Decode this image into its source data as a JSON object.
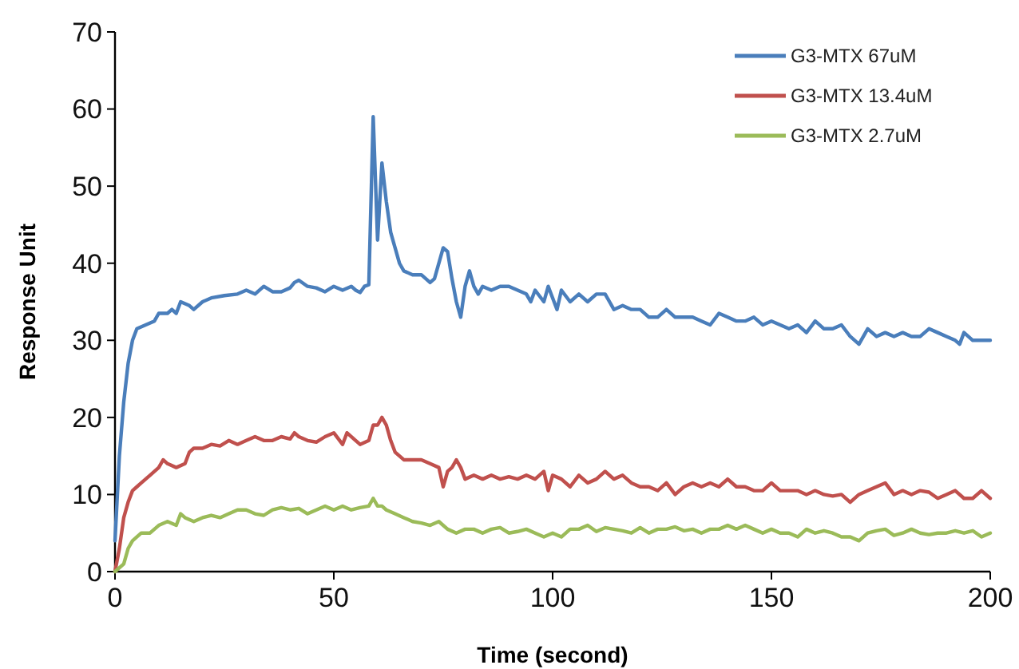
{
  "chart_data": {
    "type": "line",
    "xlabel": "Time (second)",
    "ylabel": "Response Unit",
    "xlim": [
      0,
      200
    ],
    "xticks": [
      0,
      50,
      100,
      150,
      200
    ],
    "ylim": [
      0,
      70
    ],
    "yticks": [
      0,
      10,
      20,
      30,
      40,
      50,
      60,
      70
    ],
    "grid": false,
    "legend": "top right",
    "marker": "none",
    "line_style": "solid",
    "series": [
      {
        "name": "G3-MTX 67uM",
        "color": "#4a7ebb",
        "x": [
          0,
          1,
          2,
          3,
          4,
          5,
          7,
          9,
          10,
          12,
          13,
          14,
          15,
          17,
          18,
          20,
          22,
          25,
          28,
          30,
          32,
          34,
          36,
          38,
          40,
          41,
          42,
          44,
          46,
          48,
          50,
          52,
          54,
          55,
          56,
          57,
          58,
          59,
          60,
          61,
          62,
          63,
          64,
          65,
          66,
          68,
          70,
          72,
          73,
          75,
          76,
          77,
          78,
          79,
          80,
          81,
          82,
          83,
          84,
          86,
          88,
          90,
          92,
          94,
          95,
          96,
          98,
          99,
          100,
          101,
          102,
          104,
          106,
          108,
          110,
          112,
          113,
          114,
          116,
          118,
          120,
          122,
          124,
          126,
          128,
          130,
          132,
          134,
          136,
          138,
          140,
          142,
          144,
          146,
          148,
          150,
          152,
          154,
          156,
          158,
          160,
          162,
          164,
          166,
          168,
          170,
          172,
          174,
          176,
          178,
          180,
          182,
          184,
          186,
          188,
          190,
          192,
          193,
          194,
          196,
          198,
          200
        ],
        "values": [
          4,
          15,
          22,
          27,
          30,
          31.5,
          32,
          32.5,
          33.5,
          33.5,
          34,
          33.5,
          35,
          34.5,
          34,
          35,
          35.5,
          35.8,
          36,
          36.5,
          36,
          37,
          36.3,
          36.3,
          36.8,
          37.5,
          37.8,
          37,
          36.8,
          36.3,
          37,
          36.5,
          37,
          36.5,
          36.2,
          37,
          37.2,
          59,
          43,
          53,
          48,
          44,
          42,
          40,
          39,
          38.5,
          38.5,
          37.5,
          38,
          42,
          41.5,
          38,
          35,
          33,
          37,
          39,
          37,
          36,
          37,
          36.5,
          37,
          37,
          36.5,
          36,
          35,
          36.5,
          35,
          37,
          35.5,
          34,
          36.5,
          35,
          36,
          35,
          36,
          36,
          35,
          34,
          34.5,
          34,
          34,
          33,
          33,
          34,
          33,
          33,
          33,
          32.5,
          32,
          33.5,
          33,
          32.5,
          32.5,
          33,
          32,
          32.5,
          32,
          31.5,
          32,
          31,
          32.5,
          31.5,
          31.5,
          32,
          30.5,
          29.5,
          31.5,
          30.5,
          31,
          30.5,
          31,
          30.5,
          30.5,
          31.5,
          31,
          30.5,
          30,
          29.5,
          31,
          30,
          30,
          30
        ]
      },
      {
        "name": "G3-MTX 13.4uM",
        "color": "#c0504d",
        "x": [
          0,
          1,
          2,
          3,
          4,
          5,
          6,
          8,
          10,
          11,
          12,
          14,
          16,
          17,
          18,
          20,
          22,
          24,
          26,
          28,
          30,
          32,
          34,
          36,
          38,
          40,
          41,
          42,
          44,
          46,
          48,
          50,
          52,
          53,
          55,
          56,
          58,
          59,
          60,
          61,
          62,
          63,
          64,
          65,
          66,
          68,
          70,
          72,
          74,
          75,
          76,
          77,
          78,
          79,
          80,
          82,
          84,
          86,
          88,
          90,
          92,
          94,
          96,
          98,
          99,
          100,
          102,
          104,
          106,
          108,
          110,
          112,
          114,
          116,
          118,
          120,
          122,
          124,
          126,
          128,
          130,
          132,
          134,
          136,
          138,
          140,
          142,
          144,
          146,
          148,
          150,
          152,
          154,
          156,
          158,
          160,
          162,
          164,
          166,
          168,
          170,
          172,
          174,
          176,
          178,
          180,
          182,
          184,
          186,
          188,
          190,
          192,
          194,
          196,
          198,
          200
        ],
        "values": [
          0,
          3,
          7,
          9,
          10.5,
          11,
          11.5,
          12.5,
          13.5,
          14.5,
          14,
          13.5,
          14,
          15.5,
          16,
          16,
          16.5,
          16.3,
          17,
          16.5,
          17,
          17.5,
          17,
          17,
          17.5,
          17.2,
          18,
          17.5,
          17,
          16.8,
          17.5,
          18,
          16.5,
          18,
          17,
          16.5,
          17,
          19,
          19,
          20,
          19,
          17,
          15.5,
          15,
          14.5,
          14.5,
          14.5,
          14,
          13.5,
          11,
          13,
          13.5,
          14.5,
          13.5,
          12,
          12.5,
          12,
          12.5,
          12,
          12.3,
          12,
          12.5,
          12,
          13,
          10.5,
          12.5,
          12,
          11,
          12.5,
          11.5,
          12,
          13,
          12,
          12.5,
          11.5,
          11,
          11,
          10.5,
          11.5,
          10,
          11,
          11.5,
          11,
          11.5,
          11,
          12,
          11,
          11,
          10.5,
          10.5,
          11.5,
          10.5,
          10.5,
          10.5,
          10,
          10.5,
          10,
          9.8,
          10,
          9,
          10,
          10.5,
          11,
          11.5,
          10,
          10.5,
          10,
          10.5,
          10.3,
          9.5,
          10,
          10.5,
          9.5,
          9.5,
          10.5,
          9.5
        ]
      },
      {
        "name": "G3-MTX 2.7uM",
        "color": "#9bbb59",
        "x": [
          0,
          2,
          3,
          4,
          6,
          8,
          10,
          12,
          14,
          15,
          16,
          18,
          20,
          22,
          24,
          26,
          28,
          30,
          32,
          34,
          36,
          38,
          40,
          42,
          44,
          46,
          48,
          50,
          52,
          54,
          56,
          58,
          59,
          60,
          61,
          62,
          64,
          66,
          68,
          70,
          72,
          74,
          76,
          78,
          80,
          82,
          84,
          86,
          88,
          90,
          92,
          94,
          96,
          98,
          100,
          102,
          104,
          106,
          108,
          110,
          112,
          114,
          116,
          118,
          120,
          122,
          124,
          126,
          128,
          130,
          132,
          134,
          136,
          138,
          140,
          142,
          144,
          146,
          148,
          150,
          152,
          154,
          156,
          158,
          160,
          162,
          164,
          166,
          168,
          170,
          172,
          174,
          176,
          178,
          180,
          182,
          184,
          186,
          188,
          190,
          192,
          194,
          196,
          198,
          200
        ],
        "values": [
          0,
          1,
          3,
          4,
          5,
          5,
          6,
          6.5,
          6,
          7.5,
          7,
          6.5,
          7,
          7.3,
          7,
          7.5,
          8,
          8,
          7.5,
          7.3,
          8,
          8.3,
          8,
          8.2,
          7.5,
          8,
          8.5,
          8,
          8.5,
          8,
          8.3,
          8.5,
          9.5,
          8.5,
          8.5,
          8,
          7.5,
          7,
          6.5,
          6.3,
          6,
          6.5,
          5.5,
          5,
          5.5,
          5.5,
          5,
          5.5,
          5.7,
          5,
          5.2,
          5.5,
          5,
          4.5,
          5,
          4.5,
          5.5,
          5.5,
          6,
          5.2,
          5.7,
          5.5,
          5.3,
          5,
          5.7,
          5,
          5.5,
          5.5,
          5.8,
          5.3,
          5.5,
          5,
          5.5,
          5.5,
          6,
          5.5,
          6,
          5.5,
          5,
          5.5,
          5,
          5,
          4.5,
          5.5,
          5,
          5.3,
          5,
          4.5,
          4.5,
          4,
          5,
          5.3,
          5.5,
          4.7,
          5,
          5.5,
          5,
          4.8,
          5,
          5,
          5.3,
          5,
          5.3,
          4.5,
          5
        ]
      }
    ]
  }
}
